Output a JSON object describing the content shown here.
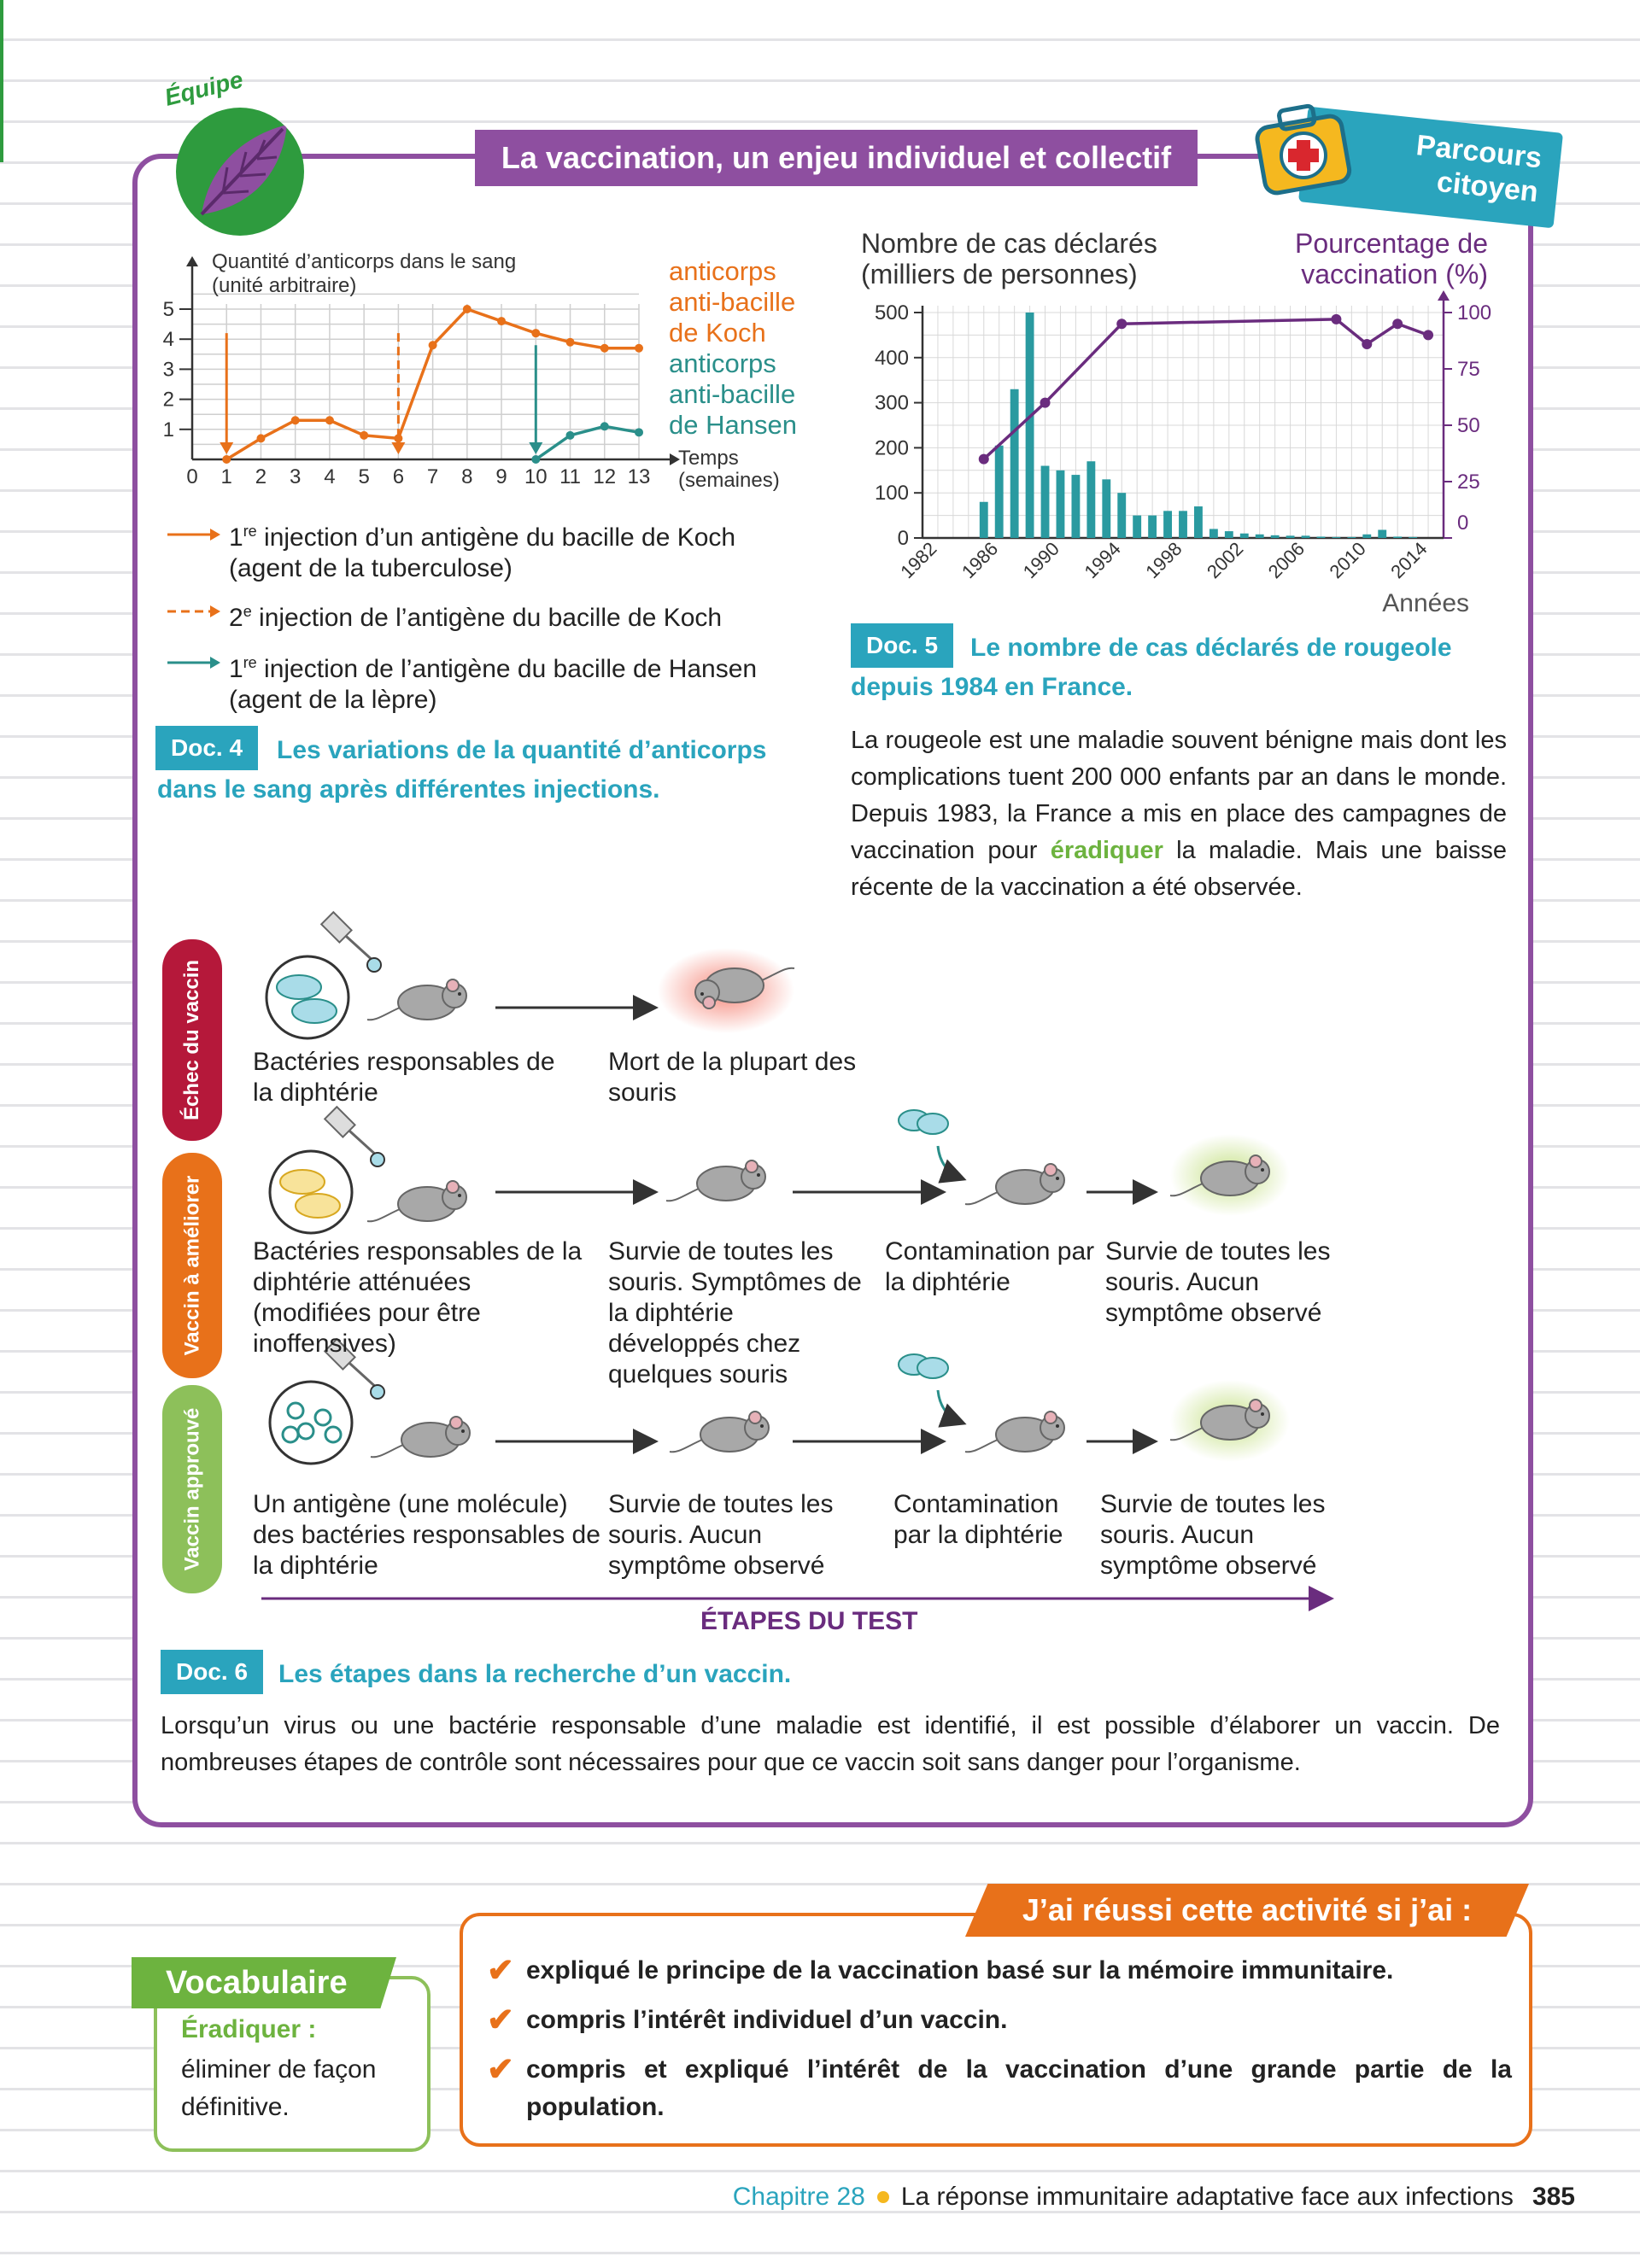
{
  "header": {
    "team_label": "Équipe",
    "title": "La vaccination, un enjeu individuel et collectif",
    "parcours_line1": "Parcours",
    "parcours_line2": "citoyen"
  },
  "doc4": {
    "tag": "Doc. 4",
    "caption": "Les variations de la quantité d’anticorps dans le sang après différentes injections.",
    "legend": [
      {
        "style": "solid-orange",
        "text_before": "1",
        "sup": "re",
        "text_after": " injection d’un antigène du bacille de Koch (agent de la tuberculose)"
      },
      {
        "style": "dashed-orange",
        "text_before": "2",
        "sup": "e",
        "text_after": " injection de l’antigène du bacille de Koch"
      },
      {
        "style": "solid-teal",
        "text_before": "1",
        "sup": "re",
        "text_after": " injection de l’antigène du bacille de Hansen (agent de la lèpre)"
      }
    ]
  },
  "doc5": {
    "tag": "Doc. 5",
    "caption": "Le nombre de cas déclarés de rougeole depuis 1984 en France.",
    "text": "La rougeole est une maladie souvent bénigne mais dont les complications tuent 200 000 enfants par an dans le monde. Depuis 1983, la France a mis en place des campagnes de vaccination pour ",
    "highlight": "éradiquer",
    "text_after": " la maladie. Mais une baisse récente de la vaccination a été observée."
  },
  "doc6": {
    "tag": "Doc. 6",
    "caption": "Les étapes dans la recherche d’un vaccin.",
    "text": "Lorsqu’un virus ou une bactérie responsable d’une maladie est identifié, il est possible d’élaborer un vaccin. De nombreuses étapes de contrôle sont nécessaires pour que ce vaccin soit sans danger pour l’organisme.",
    "rows": [
      {
        "tab": "Échec du vaccin",
        "color": "#b5183a",
        "labels": [
          "Bactéries responsables de la diphtérie",
          "Mort de la plupart des souris"
        ]
      },
      {
        "tab": "Vaccin à améliorer",
        "color": "#e8711a",
        "labels": [
          "Bactéries responsables de la diphtérie atténuées (modifiées pour être inoffensives)",
          "Survie de toutes les souris. Symptômes de la diphtérie développés chez quelques souris",
          "Contamination par la diphtérie",
          "Survie de toutes les souris. Aucun symptôme observé"
        ]
      },
      {
        "tab": "Vaccin approuvé",
        "color": "#8dc05a",
        "labels": [
          "Un antigène (une molécule) des bactéries responsables de la diphtérie",
          "Survie de toutes les souris. Aucun symptôme observé",
          "Contamination par la diphtérie",
          "Survie de toutes les souris. Aucun symptôme observé"
        ]
      }
    ],
    "etapes": "ÉTAPES DU TEST"
  },
  "chart_data": [
    {
      "type": "line",
      "title": "",
      "ylabel": "Quantité d’anticorps dans le sang (unité arbitraire)",
      "xlabel": "Temps (semaines)",
      "xlim": [
        0,
        13
      ],
      "ylim": [
        0,
        5
      ],
      "xticks": [
        0,
        1,
        2,
        3,
        4,
        5,
        6,
        7,
        8,
        9,
        10,
        11,
        12,
        13
      ],
      "yticks": [
        1,
        2,
        3,
        4,
        5
      ],
      "series": [
        {
          "name": "anticorps anti-bacille de Koch",
          "color": "#e8711a",
          "x": [
            1,
            2,
            3,
            4,
            5,
            6,
            7,
            8,
            9,
            10,
            11,
            12,
            13
          ],
          "y": [
            0,
            0.7,
            1.3,
            1.3,
            0.8,
            0.7,
            3.8,
            5.0,
            4.6,
            4.2,
            3.9,
            3.7,
            3.7
          ]
        },
        {
          "name": "anticorps anti-bacille de Hansen",
          "color": "#2a8f8a",
          "x": [
            10,
            11,
            12,
            13
          ],
          "y": [
            0,
            0.8,
            1.1,
            0.9
          ]
        }
      ],
      "injections": [
        {
          "x": 1,
          "style": "solid",
          "color": "#e8711a"
        },
        {
          "x": 6,
          "style": "dashed",
          "color": "#e8711a"
        },
        {
          "x": 10,
          "style": "solid",
          "color": "#2a8f8a"
        }
      ]
    },
    {
      "type": "bar+line",
      "ylabel_left": "Nombre de cas déclarés (milliers de personnes)",
      "ylabel_right": "Pourcentage de vaccination (%)",
      "xlabel": "Années",
      "ylim_left": [
        0,
        500
      ],
      "ylim_right": [
        0,
        100
      ],
      "yticks_left": [
        0,
        100,
        200,
        300,
        400,
        500
      ],
      "yticks_right": [
        0,
        25,
        50,
        75,
        100
      ],
      "xticks": [
        "1982",
        "1986",
        "1990",
        "1994",
        "1998",
        "2002",
        "2006",
        "2010",
        "2014"
      ],
      "bars": {
        "name": "Nombre de cas déclarés",
        "color": "#2a9aa0",
        "years": [
          1985,
          1986,
          1987,
          1988,
          1989,
          1990,
          1991,
          1992,
          1993,
          1994,
          1995,
          1996,
          1997,
          1998,
          1999,
          2000,
          2001,
          2002,
          2003,
          2004,
          2005,
          2006,
          2007,
          2008,
          2009,
          2010,
          2011,
          2012,
          2013
        ],
        "values": [
          80,
          205,
          330,
          500,
          160,
          150,
          140,
          170,
          130,
          100,
          50,
          50,
          60,
          60,
          70,
          20,
          15,
          10,
          8,
          6,
          5,
          5,
          3,
          2,
          2,
          8,
          18,
          3,
          2
        ]
      },
      "line": {
        "name": "Pourcentage de vaccination",
        "color": "#6a2c7e",
        "years": [
          1985,
          1989,
          1994,
          2008,
          2010,
          2012,
          2014
        ],
        "values": [
          35,
          60,
          95,
          97,
          86,
          95,
          90
        ]
      }
    }
  ],
  "chart_labels": {
    "c1_ylabel_1": "Quantité d’anticorps dans le sang",
    "c1_ylabel_2": "(unité arbitraire)",
    "c1_xlabel_1": "Temps",
    "c1_xlabel_2": "(semaines)",
    "koch_lines": [
      "anticorps",
      "anti-bacille",
      "de Koch"
    ],
    "hansen_lines": [
      "anticorps",
      "anti-bacille",
      "de Hansen"
    ],
    "c2_left_1": "Nombre de cas déclarés",
    "c2_left_2": "(milliers de personnes)",
    "c2_right_1": "Pourcentage de",
    "c2_right_2": "vaccination (%)",
    "c2_xlabel": "Années"
  },
  "vocabulary": {
    "heading": "Vocabulaire",
    "term": "Éradiquer :",
    "definition": "éliminer de façon définitive."
  },
  "success": {
    "heading": "J’ai réussi cette activité si j’ai :",
    "items": [
      "expliqué le principe de la vaccination basé sur la mémoire immunitaire.",
      "compris l’intérêt individuel d’un vaccin.",
      "compris et expliqué l’intérêt de la vaccination d’une grande partie de la population."
    ]
  },
  "footer": {
    "chapter": "Chapitre 28",
    "title": "La réponse immunitaire adaptative face aux infections",
    "page": "385"
  }
}
